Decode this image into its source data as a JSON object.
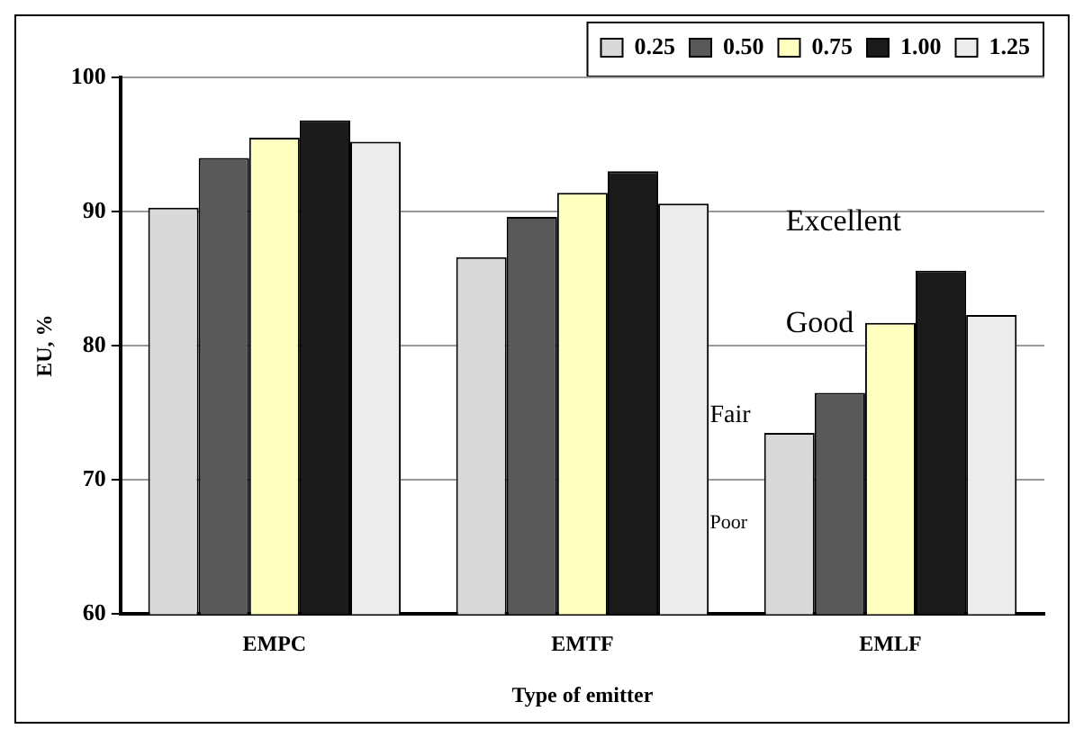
{
  "chart_data": {
    "type": "bar",
    "xlabel": "Type of emitter",
    "ylabel": "EU, %",
    "categories": [
      "EMPC",
      "EMTF",
      "EMLF"
    ],
    "series": [
      {
        "name": "0.25",
        "color": "#d9d9d9",
        "values": [
          90.3,
          86.6,
          73.5
        ]
      },
      {
        "name": "0.50",
        "color": "#595959",
        "values": [
          94.0,
          89.6,
          76.5
        ]
      },
      {
        "name": "0.75",
        "color": "#ffffc0",
        "values": [
          95.5,
          91.4,
          81.7
        ]
      },
      {
        "name": "1.00",
        "color": "#1a1a1a",
        "values": [
          96.8,
          93.0,
          85.6
        ]
      },
      {
        "name": "1.25",
        "color": "#ececec",
        "values": [
          95.2,
          90.6,
          82.3
        ]
      }
    ],
    "ylim": [
      60,
      100
    ],
    "yticks": [
      60,
      70,
      80,
      90,
      100
    ],
    "grid": "y",
    "legend": "top right",
    "annotations": [
      "Excellent",
      "Good",
      "Fair",
      "Poor"
    ]
  }
}
